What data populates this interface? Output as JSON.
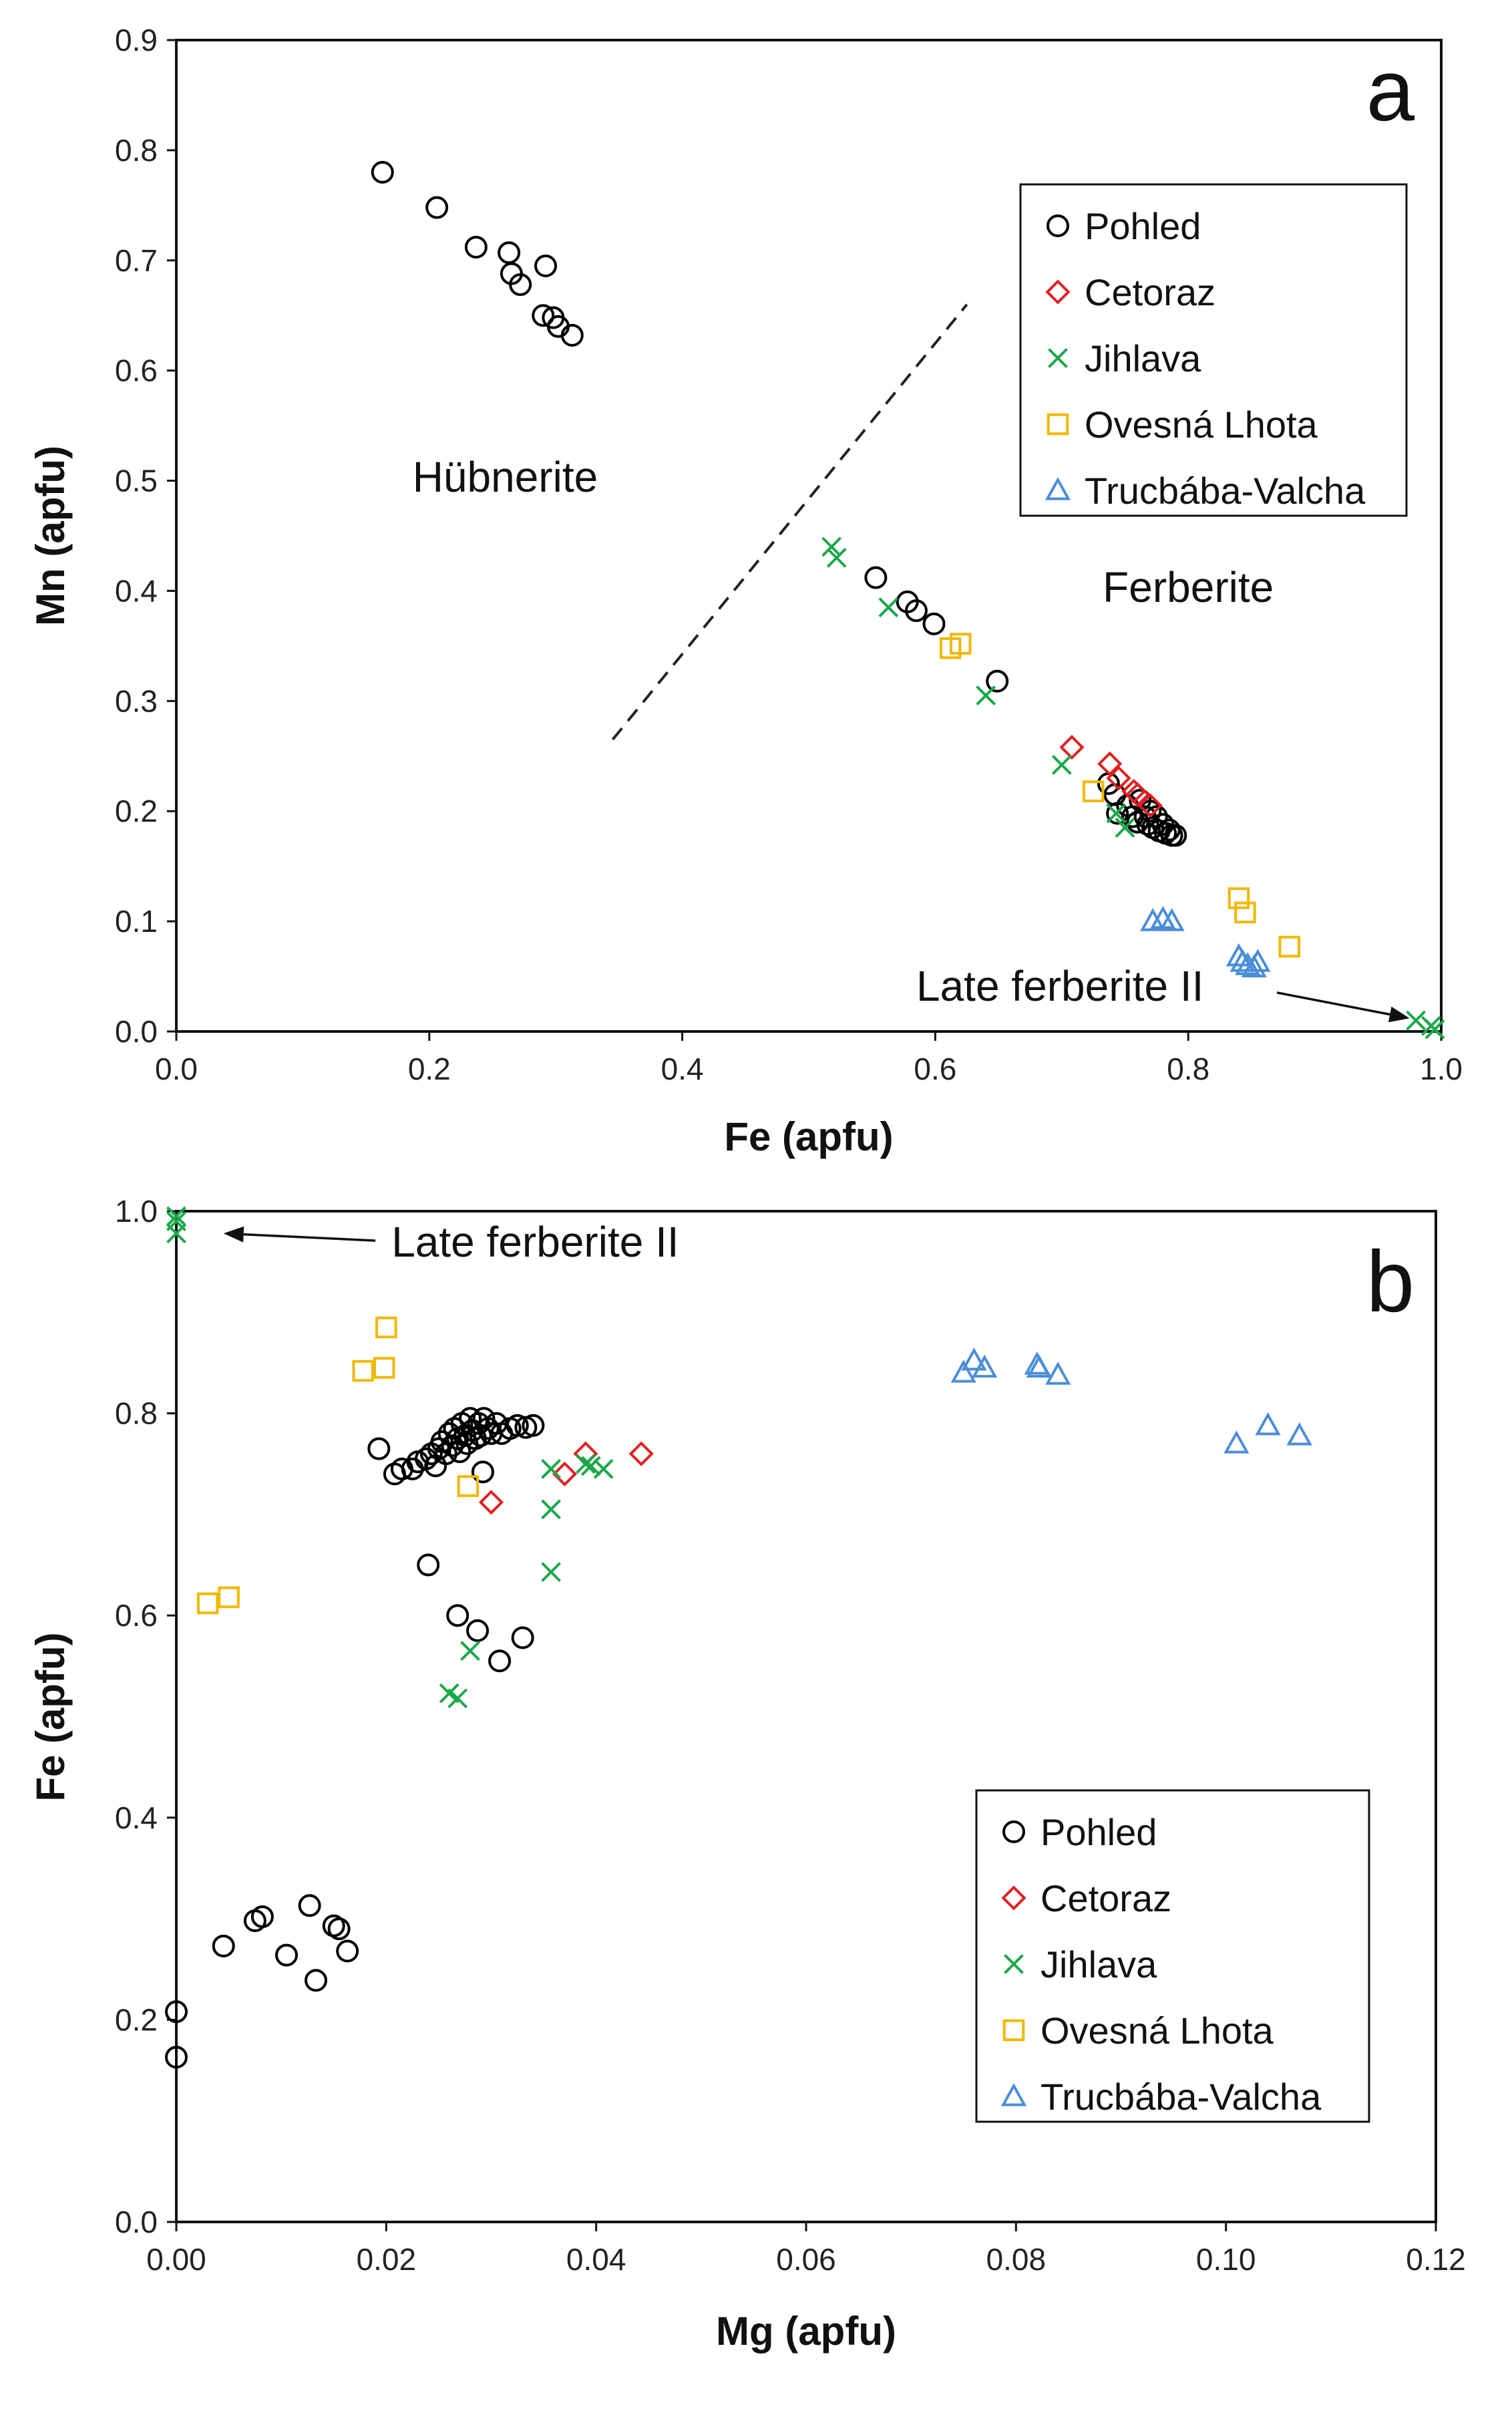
{
  "colors": {
    "Pohled": "#000000",
    "Cetoraz": "#e02020",
    "Jihlava": "#1aa84a",
    "Ovesná Lhota": "#f0b800",
    "Trucbába-Valcha": "#4a8ed8"
  },
  "legend_order": [
    "Pohled",
    "Cetoraz",
    "Jihlava",
    "Ovesná Lhota",
    "Trucbába-Valcha"
  ],
  "marker_map": {
    "Pohled": "circle",
    "Cetoraz": "diamond",
    "Jihlava": "x",
    "Ovesná Lhota": "square",
    "Trucbába-Valcha": "triangle"
  },
  "chart_data": [
    {
      "type": "scatter",
      "panel": "a",
      "xlabel": "Fe (apfu)",
      "ylabel": "Mn (apfu)",
      "xlim": [
        0,
        1.0
      ],
      "ylim": [
        0,
        0.9
      ],
      "xticks": [
        0,
        0.2,
        0.4,
        0.6,
        0.8,
        1.0
      ],
      "xtick_labels": [
        "0.0",
        "0.2",
        "0.4",
        "0.6",
        "0.8",
        "1.0"
      ],
      "yticks": [
        0,
        0.1,
        0.2,
        0.3,
        0.4,
        0.5,
        0.6,
        0.7,
        0.8,
        0.9
      ],
      "ytick_labels": [
        "0.0",
        "0.1",
        "0.2",
        "0.3",
        "0.4",
        "0.5",
        "0.6",
        "0.7",
        "0.8",
        "0.9"
      ],
      "legend_position": "top-right",
      "region_labels": [
        {
          "text": "Hübnerite",
          "x": 0.26,
          "y": 0.49
        },
        {
          "text": "Ferberite",
          "x": 0.8,
          "y": 0.39
        }
      ],
      "divider_line": {
        "x": [
          0.345,
          0.625
        ],
        "y": [
          0.265,
          0.66
        ]
      },
      "annotation": {
        "text": "Late ferberite II",
        "text_x": 0.585,
        "text_y": 0.028,
        "arrow_to_x": 0.975,
        "arrow_to_y": 0.012
      },
      "series": [
        {
          "name": "Pohled",
          "points": [
            [
              0.163,
              0.78
            ],
            [
              0.206,
              0.748
            ],
            [
              0.237,
              0.712
            ],
            [
              0.263,
              0.707
            ],
            [
              0.265,
              0.688
            ],
            [
              0.272,
              0.678
            ],
            [
              0.292,
              0.695
            ],
            [
              0.29,
              0.65
            ],
            [
              0.298,
              0.648
            ],
            [
              0.302,
              0.64
            ],
            [
              0.313,
              0.632
            ],
            [
              0.553,
              0.412
            ],
            [
              0.578,
              0.39
            ],
            [
              0.585,
              0.382
            ],
            [
              0.599,
              0.37
            ],
            [
              0.649,
              0.318
            ],
            [
              0.737,
              0.225
            ],
            [
              0.742,
              0.215
            ],
            [
              0.744,
              0.198
            ],
            [
              0.752,
              0.205
            ],
            [
              0.756,
              0.195
            ],
            [
              0.76,
              0.19
            ],
            [
              0.762,
              0.21
            ],
            [
              0.766,
              0.195
            ],
            [
              0.768,
              0.188
            ],
            [
              0.77,
              0.2
            ],
            [
              0.772,
              0.185
            ],
            [
              0.775,
              0.195
            ],
            [
              0.777,
              0.182
            ],
            [
              0.78,
              0.188
            ],
            [
              0.782,
              0.18
            ],
            [
              0.785,
              0.183
            ],
            [
              0.787,
              0.178
            ],
            [
              0.79,
              0.178
            ]
          ]
        },
        {
          "name": "Cetoraz",
          "points": [
            [
              0.708,
              0.258
            ],
            [
              0.738,
              0.243
            ],
            [
              0.745,
              0.23
            ],
            [
              0.757,
              0.218
            ],
            [
              0.76,
              0.215
            ],
            [
              0.77,
              0.205
            ]
          ]
        },
        {
          "name": "Jihlava",
          "points": [
            [
              0.518,
              0.44
            ],
            [
              0.522,
              0.43
            ],
            [
              0.563,
              0.385
            ],
            [
              0.64,
              0.305
            ],
            [
              0.7,
              0.242
            ],
            [
              0.743,
              0.198
            ],
            [
              0.75,
              0.185
            ],
            [
              0.98,
              0.01
            ],
            [
              0.992,
              0.005
            ],
            [
              0.995,
              0.002
            ]
          ]
        },
        {
          "name": "Ovesná Lhota",
          "points": [
            [
              0.612,
              0.348
            ],
            [
              0.62,
              0.352
            ],
            [
              0.725,
              0.218
            ],
            [
              0.84,
              0.121
            ],
            [
              0.845,
              0.108
            ],
            [
              0.88,
              0.077
            ]
          ]
        },
        {
          "name": "Trucbába-Valcha",
          "points": [
            [
              0.772,
              0.1
            ],
            [
              0.78,
              0.102
            ],
            [
              0.787,
              0.1
            ],
            [
              0.84,
              0.068
            ],
            [
              0.843,
              0.063
            ],
            [
              0.847,
              0.06
            ],
            [
              0.852,
              0.058
            ],
            [
              0.855,
              0.063
            ]
          ]
        }
      ]
    },
    {
      "type": "scatter",
      "panel": "b",
      "xlabel": "Mg (apfu)",
      "ylabel": "Fe (apfu)",
      "xlim": [
        0,
        0.12
      ],
      "ylim": [
        0,
        1.0
      ],
      "xticks": [
        0,
        0.02,
        0.04,
        0.06,
        0.08,
        0.1,
        0.12
      ],
      "xtick_labels": [
        "0.00",
        "0.02",
        "0.04",
        "0.06",
        "0.08",
        "0.10",
        "0.12"
      ],
      "yticks": [
        0,
        0.2,
        0.4,
        0.6,
        0.8,
        1.0
      ],
      "ytick_labels": [
        "0.0",
        "0.2",
        "0.4",
        "0.6",
        "0.8",
        "1.0"
      ],
      "legend_position": "bottom-right",
      "annotation": {
        "text": "Late ferberite II",
        "text_x": 0.0205,
        "text_y": 0.955,
        "arrow_to_x": 0.0045,
        "arrow_to_y": 0.978
      },
      "series": [
        {
          "name": "Pohled",
          "points": [
            [
              0.0,
              0.208
            ],
            [
              0.0,
              0.163
            ],
            [
              0.0045,
              0.273
            ],
            [
              0.0075,
              0.298
            ],
            [
              0.0082,
              0.302
            ],
            [
              0.0105,
              0.264
            ],
            [
              0.0127,
              0.313
            ],
            [
              0.0133,
              0.239
            ],
            [
              0.015,
              0.293
            ],
            [
              0.0155,
              0.29
            ],
            [
              0.0163,
              0.268
            ],
            [
              0.0193,
              0.765
            ],
            [
              0.0208,
              0.74
            ],
            [
              0.0215,
              0.745
            ],
            [
              0.0225,
              0.745
            ],
            [
              0.023,
              0.752
            ],
            [
              0.0238,
              0.755
            ],
            [
              0.024,
              0.65
            ],
            [
              0.0243,
              0.76
            ],
            [
              0.0247,
              0.748
            ],
            [
              0.025,
              0.765
            ],
            [
              0.0253,
              0.772
            ],
            [
              0.0257,
              0.76
            ],
            [
              0.026,
              0.78
            ],
            [
              0.0263,
              0.768
            ],
            [
              0.0265,
              0.785
            ],
            [
              0.0268,
              0.6
            ],
            [
              0.0268,
              0.775
            ],
            [
              0.027,
              0.762
            ],
            [
              0.0272,
              0.79
            ],
            [
              0.0275,
              0.778
            ],
            [
              0.0277,
              0.77
            ],
            [
              0.028,
              0.795
            ],
            [
              0.0282,
              0.783
            ],
            [
              0.0285,
              0.775
            ],
            [
              0.0287,
              0.585
            ],
            [
              0.0288,
              0.79
            ],
            [
              0.029,
              0.778
            ],
            [
              0.0292,
              0.742
            ],
            [
              0.0293,
              0.795
            ],
            [
              0.0297,
              0.785
            ],
            [
              0.03,
              0.78
            ],
            [
              0.0305,
              0.79
            ],
            [
              0.0308,
              0.555
            ],
            [
              0.031,
              0.78
            ],
            [
              0.0318,
              0.785
            ],
            [
              0.0325,
              0.788
            ],
            [
              0.033,
              0.578
            ],
            [
              0.0333,
              0.786
            ],
            [
              0.034,
              0.788
            ]
          ]
        },
        {
          "name": "Cetoraz",
          "points": [
            [
              0.03,
              0.712
            ],
            [
              0.037,
              0.74
            ],
            [
              0.039,
              0.76
            ],
            [
              0.0443,
              0.76
            ]
          ]
        },
        {
          "name": "Jihlava",
          "points": [
            [
              0.0,
              0.995
            ],
            [
              0.0,
              0.99
            ],
            [
              0.0,
              0.978
            ],
            [
              0.026,
              0.523
            ],
            [
              0.0268,
              0.518
            ],
            [
              0.028,
              0.565
            ],
            [
              0.0357,
              0.643
            ],
            [
              0.0357,
              0.705
            ],
            [
              0.0357,
              0.745
            ],
            [
              0.039,
              0.75
            ],
            [
              0.0395,
              0.748
            ],
            [
              0.0407,
              0.745
            ]
          ]
        },
        {
          "name": "Ovesná Lhota",
          "points": [
            [
              0.003,
              0.612
            ],
            [
              0.005,
              0.618
            ],
            [
              0.0178,
              0.842
            ],
            [
              0.0198,
              0.845
            ],
            [
              0.02,
              0.885
            ],
            [
              0.0278,
              0.728
            ]
          ]
        },
        {
          "name": "Trucbába-Valcha",
          "points": [
            [
              0.075,
              0.84
            ],
            [
              0.076,
              0.852
            ],
            [
              0.077,
              0.845
            ],
            [
              0.082,
              0.848
            ],
            [
              0.0822,
              0.845
            ],
            [
              0.084,
              0.838
            ],
            [
              0.101,
              0.77
            ],
            [
              0.104,
              0.788
            ],
            [
              0.107,
              0.778
            ]
          ]
        }
      ]
    }
  ]
}
